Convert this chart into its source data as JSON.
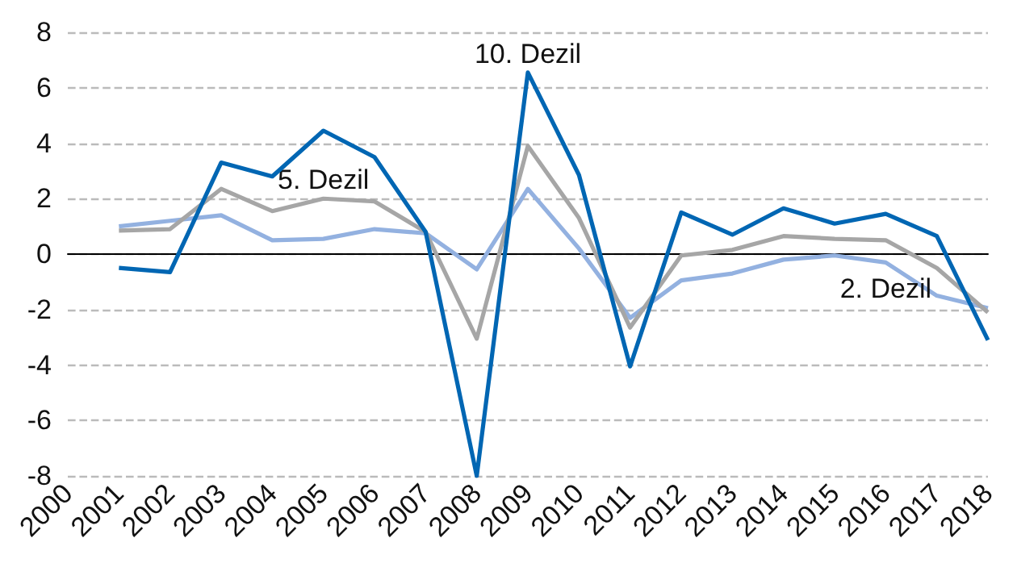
{
  "chart_data": {
    "type": "line",
    "categories": [
      "2000",
      "2001",
      "2002",
      "2003",
      "2004",
      "2005",
      "2006",
      "2007",
      "2008",
      "2009",
      "2010",
      "2011",
      "2012",
      "2013",
      "2014",
      "2015",
      "2016",
      "2017",
      "2018"
    ],
    "series": [
      {
        "name": "10. Dezil",
        "color": "#0066b3",
        "values": [
          null,
          -0.5,
          -0.65,
          3.3,
          2.8,
          4.45,
          3.5,
          0.8,
          -8,
          6.55,
          2.85,
          -4.05,
          1.5,
          0.7,
          1.65,
          1.1,
          1.45,
          0.65,
          -3.1
        ]
      },
      {
        "name": "5. Dezil",
        "color": "#a6a6a6",
        "values": [
          null,
          0.85,
          0.9,
          2.35,
          1.55,
          2.0,
          1.9,
          0.8,
          -3.05,
          3.9,
          1.3,
          -2.65,
          -0.05,
          0.15,
          0.65,
          0.55,
          0.5,
          -0.5,
          -2.1
        ]
      },
      {
        "name": "2. Dezil",
        "color": "#93b1e0",
        "values": [
          null,
          1.0,
          1.2,
          1.4,
          0.5,
          0.55,
          0.9,
          0.75,
          -0.55,
          2.35,
          0.2,
          -2.3,
          -0.95,
          -0.7,
          -0.2,
          -0.05,
          -0.3,
          -1.5,
          -1.95
        ]
      }
    ],
    "ylim": [
      -8,
      8
    ],
    "yticks": [
      -8,
      -6,
      -4,
      -2,
      0,
      2,
      4,
      6,
      8
    ],
    "grid": "y",
    "legend": false,
    "marker": "none",
    "line_style": "solid"
  }
}
